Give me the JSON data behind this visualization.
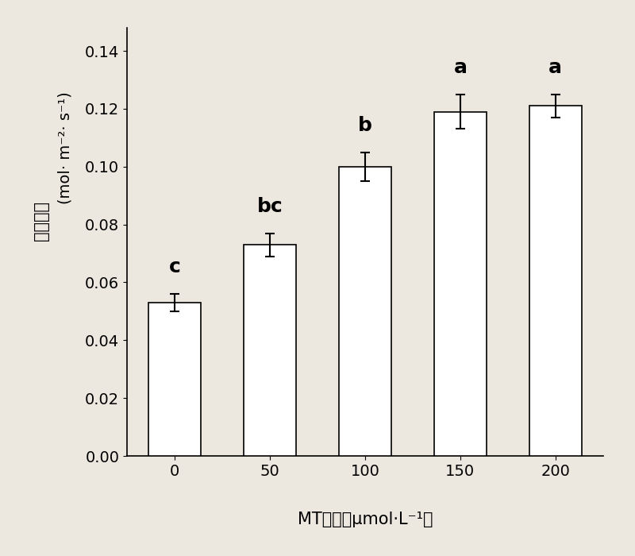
{
  "categories": [
    "0",
    "50",
    "100",
    "150",
    "200"
  ],
  "values": [
    0.053,
    0.073,
    0.1,
    0.119,
    0.121
  ],
  "errors": [
    0.003,
    0.004,
    0.005,
    0.006,
    0.004
  ],
  "significance": [
    "c",
    "bc",
    "b",
    "a",
    "a"
  ],
  "bar_color": "#ffffff",
  "bar_edgecolor": "#000000",
  "bar_width": 0.55,
  "ylabel_chinese": "气孔导度",
  "ylabel_units": "(mol· m⁻²· s⁻¹)",
  "xlabel": "MT浓度（μmol·L⁻¹）",
  "ylim": [
    0,
    0.148
  ],
  "yticks": [
    0.0,
    0.02,
    0.04,
    0.06,
    0.08,
    0.1,
    0.12,
    0.14
  ],
  "label_fontsize": 15,
  "tick_fontsize": 14,
  "sig_fontsize": 18,
  "errorbar_capsize": 4,
  "errorbar_linewidth": 1.5,
  "background_color": "#ede8df"
}
